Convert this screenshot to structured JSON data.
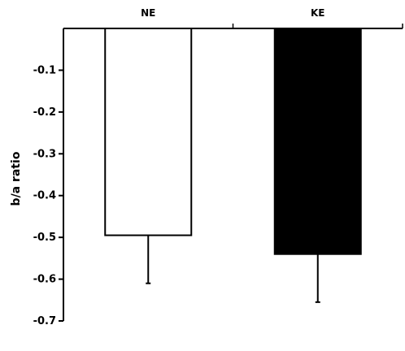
{
  "chart_data": {
    "type": "bar",
    "categories": [
      "NE",
      "KE"
    ],
    "values": [
      -0.495,
      -0.54
    ],
    "errors": [
      0.115,
      0.115
    ],
    "bar_colors": [
      "#ffffff",
      "#000000"
    ],
    "edge_color": "#000000",
    "title": "",
    "xlabel": "",
    "ylabel": "b/a ratio",
    "ylim": [
      -0.7,
      0
    ],
    "yticks": [
      -0.1,
      -0.2,
      -0.3,
      -0.4,
      -0.5,
      -0.6,
      -0.7
    ],
    "ytick_labels": [
      "-0.1",
      "-0.2",
      "-0.3",
      "-0.4",
      "-0.5",
      "-0.6",
      "-0.7"
    ],
    "x_axis_position": "top",
    "grid": false,
    "legend": "none"
  }
}
